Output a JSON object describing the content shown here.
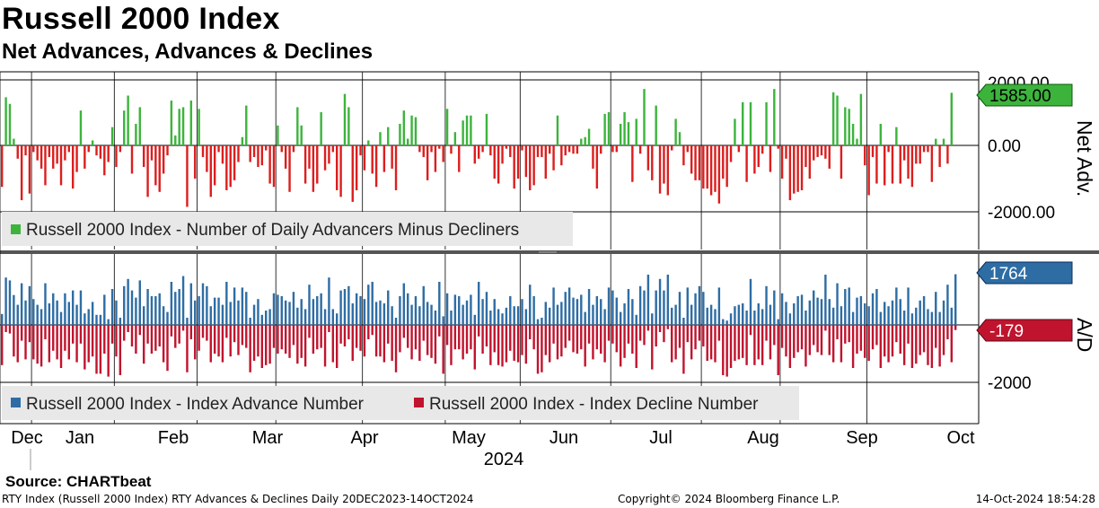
{
  "header": {
    "title": "Russell 2000 Index",
    "subtitle": "Net Advances, Advances & Declines"
  },
  "footer": {
    "source": "Source: CHARTbeat",
    "left": "RTY Index (Russell 2000 Index) RTY Advances & Declines  Daily 20DEC2023-14OCT2024",
    "copyright": "Copyright© 2024 Bloomberg Finance L.P.",
    "timestamp": "14-Oct-2024 18:54:28"
  },
  "colors": {
    "net_positive": "#3cb43c",
    "net_negative": "#dc1e1e",
    "advances": "#2e6da4",
    "declines": "#c0142e",
    "net_last_tag": "#3cb43c",
    "adv_last_tag": "#2e6da4",
    "dec_last_tag": "#c0142e"
  },
  "chart_data": [
    {
      "type": "bar",
      "panel": "top",
      "ylabel": "Net Adv.",
      "ylim": [
        -3000,
        2200
      ],
      "yticks": [
        2000,
        0,
        -2000
      ],
      "ytick_labels": [
        "2000.00",
        "0.00",
        "-2000.00"
      ],
      "legend": [
        "Russell 2000 Index - Number of Daily Advancers Minus Decliners"
      ],
      "last_value_label": "1585.00",
      "series": [
        {
          "name": "Russell 2000 Index - Number of Daily Advancers Minus Decliners",
          "values": [
            -1250,
            1450,
            1250,
            200,
            -400,
            -1650,
            -300,
            -1450,
            -200,
            -450,
            -700,
            -1200,
            -350,
            -700,
            -550,
            -1200,
            -450,
            -200,
            -1300,
            -800,
            1050,
            -700,
            -200,
            150,
            -300,
            -400,
            -900,
            -500,
            550,
            -650,
            -200,
            1050,
            1500,
            -850,
            650,
            1150,
            -650,
            -1550,
            -450,
            -1200,
            -1400,
            -850,
            -300,
            1350,
            300,
            1100,
            1150,
            -1850,
            1350,
            -1000,
            1100,
            -350,
            -800,
            -1550,
            -1200,
            -200,
            -550,
            -1350,
            -1250,
            -1050,
            -500,
            250,
            1200,
            -500,
            -350,
            -650,
            -600,
            -150,
            -1150,
            -1250,
            600,
            -200,
            -700,
            -1400,
            -200,
            1150,
            600,
            -1150,
            -700,
            -1400,
            -1150,
            1000,
            -750,
            -550,
            -200,
            -1350,
            -1550,
            1550,
            1150,
            -1700,
            -1350,
            -300,
            -750,
            150,
            -850,
            -1250,
            400,
            -800,
            550,
            -700,
            -1350,
            650,
            1050,
            200,
            900,
            850,
            -200,
            -350,
            -1050,
            -200,
            -800,
            -100,
            -500,
            1100,
            -250,
            400,
            -800,
            750,
            900,
            900,
            -550,
            -400,
            -200,
            950,
            -300,
            -1000,
            -1150,
            -550,
            -100,
            -350,
            -1300,
            -1000,
            -150,
            -950,
            -1350,
            -1200,
            -350,
            -350,
            -1000,
            -250,
            -750,
            900,
            -600,
            -300,
            -200,
            -250,
            -250,
            200,
            250,
            500,
            -700,
            -1300,
            -250,
            950,
            1000,
            -200,
            -200,
            650,
            1000,
            700,
            -1100,
            800,
            -250,
            1700,
            -750,
            -1050,
            1200,
            -1450,
            -1150,
            -1500,
            -150,
            800,
            400,
            -600,
            -200,
            -850,
            -1050,
            -1050,
            -1300,
            -1300,
            -1500,
            -1400,
            -1750,
            -1000,
            -1250,
            -500,
            800,
            -200,
            1300,
            -1100,
            1300,
            -850,
            -650,
            -250,
            1300,
            -800,
            1700,
            -100,
            -1000,
            -400,
            -1650,
            -1450,
            -1400,
            -1350,
            -650,
            -1000,
            -450,
            -350,
            -300,
            -400,
            -700,
            1600,
            1500,
            -1000,
            1150,
            1100,
            650,
            200,
            1550,
            -600,
            -1500,
            -350,
            -1150,
            650,
            -1200,
            -200,
            -1150,
            550,
            -1150,
            -450,
            -1000,
            -1250,
            -550,
            -550,
            -200,
            -200,
            -1100,
            200,
            -650,
            200,
            -550,
            1585
          ]
        }
      ]
    },
    {
      "type": "bar",
      "panel": "bottom",
      "ylabel": "A/D",
      "ylim": [
        -3000,
        2200
      ],
      "yticks": [
        -2000
      ],
      "ytick_labels": [
        "-2000"
      ],
      "legend": [
        "Russell 2000 Index - Index Advance Number",
        "Russell 2000 Index - Index Decline Number"
      ],
      "last_advance_label": "1764",
      "last_decline_label": "-179",
      "xtick_labels": [
        "Dec",
        "Jan",
        "Feb",
        "Mar",
        "Apr",
        "May",
        "Jun",
        "Jul",
        "Aug",
        "Sep",
        "Oct"
      ],
      "year_label": "2024",
      "series": [
        {
          "name": "Russell 2000 Index - Index Advance Number",
          "values": [
            380,
            1650,
            1550,
            1040,
            700,
            1450,
            850,
            1350,
            900,
            700,
            550,
            1450,
            750,
            1100,
            850,
            450,
            1100,
            800,
            1200,
            700,
            1200,
            400,
            550,
            800,
            350,
            350,
            1050,
            200,
            1250,
            850,
            250,
            1350,
            1600,
            1200,
            950,
            1550,
            650,
            1250,
            1000,
            1000,
            1100,
            650,
            450,
            1500,
            1150,
            1250,
            1700,
            250,
            1450,
            850,
            1000,
            1450,
            1350,
            650,
            950,
            950,
            700,
            1500,
            800,
            1300,
            850,
            1300,
            1150,
            250,
            700,
            900,
            350,
            500,
            550,
            1100,
            1050,
            1000,
            850,
            800,
            1150,
            600,
            900,
            550,
            1400,
            900,
            1000,
            1100,
            550,
            1650,
            550,
            400,
            1200,
            1250,
            1350,
            750,
            1100,
            1000,
            900,
            1400,
            1500,
            800,
            850,
            750,
            1200,
            650,
            250,
            1000,
            1450,
            1100,
            700,
            1000,
            650,
            1350,
            800,
            700,
            500,
            1500,
            300,
            1100,
            500,
            1050,
            1000,
            700,
            850,
            1050,
            350,
            1500,
            900,
            1150,
            500,
            900,
            550,
            400,
            600,
            1000,
            650,
            650,
            900,
            550,
            1400,
            1000,
            200,
            250,
            800,
            600,
            1300,
            700,
            800,
            1150,
            1300,
            950,
            900,
            1050,
            450,
            1250,
            700,
            1000,
            900,
            550,
            1300,
            1200,
            950,
            450,
            750,
            1250,
            900,
            350,
            1350,
            1200,
            1750,
            400,
            1200,
            1600,
            1200,
            1750,
            600,
            700,
            1150,
            250,
            1300,
            700,
            1100,
            1350,
            1150,
            600,
            700,
            550,
            1300,
            200,
            150,
            400,
            650,
            700,
            750,
            500,
            1600,
            500,
            750,
            550,
            1350,
            700,
            1200,
            200,
            1100,
            800,
            400,
            750,
            1000,
            1050,
            500,
            850,
            1200,
            950,
            900,
            1750,
            900,
            600,
            1450,
            650,
            1250,
            1300,
            450,
            950,
            1000,
            750,
            650,
            1100,
            1250,
            450,
            800,
            650,
            850,
            1300,
            900,
            500,
            1300,
            400,
            600,
            850,
            1000,
            550,
            450,
            1150,
            450,
            850,
            1400,
            600,
            1764
          ]
        },
        {
          "name": "Russell 2000 Index - Index Decline Number",
          "values": [
            -1400,
            -250,
            -300,
            -1100,
            -1300,
            -550,
            -1200,
            -600,
            -1200,
            -1350,
            -1450,
            -500,
            -1300,
            -900,
            -1200,
            -1500,
            -900,
            -1200,
            -650,
            -1300,
            -650,
            -1550,
            -1300,
            -1100,
            -1700,
            -1700,
            -1000,
            -1800,
            -650,
            -1100,
            -1750,
            -550,
            -250,
            -750,
            -1000,
            -350,
            -1350,
            -650,
            -1000,
            -900,
            -750,
            -1300,
            -1600,
            -400,
            -800,
            -650,
            -200,
            -1650,
            -500,
            -1200,
            -900,
            -450,
            -550,
            -1300,
            -1000,
            -1100,
            -1300,
            -450,
            -1100,
            -600,
            -1050,
            -700,
            -800,
            -1650,
            -1250,
            -1100,
            -1500,
            -1400,
            -1350,
            -800,
            -1000,
            -850,
            -1000,
            -1150,
            -700,
            -1350,
            -1150,
            -1450,
            -450,
            -1000,
            -850,
            -800,
            -1450,
            -250,
            -1300,
            -1500,
            -650,
            -750,
            -500,
            -1250,
            -800,
            -900,
            -1100,
            -500,
            -350,
            -1100,
            -1100,
            -1300,
            -650,
            -1250,
            -1650,
            -950,
            -450,
            -800,
            -1200,
            -850,
            -1250,
            -550,
            -1050,
            -1150,
            -1350,
            -400,
            -1700,
            -700,
            -1400,
            -850,
            -850,
            -1200,
            -1000,
            -850,
            -1550,
            -400,
            -1000,
            -750,
            -1400,
            -950,
            -1400,
            -1450,
            -1300,
            -900,
            -1250,
            -1300,
            -1050,
            -1350,
            -500,
            -850,
            -1700,
            -1650,
            -1050,
            -1300,
            -650,
            -1200,
            -1100,
            -800,
            -550,
            -950,
            -1000,
            -850,
            -1450,
            -650,
            -1200,
            -850,
            -1000,
            -1300,
            -550,
            -650,
            -950,
            -1450,
            -1150,
            -650,
            -1000,
            -1500,
            -550,
            -700,
            -200,
            -1550,
            -750,
            -250,
            -600,
            -150,
            -1300,
            -1200,
            -800,
            -1700,
            -600,
            -1200,
            -850,
            -550,
            -750,
            -1250,
            -1200,
            -1300,
            -550,
            -1750,
            -1800,
            -1500,
            -1250,
            -1200,
            -1150,
            -1400,
            -350,
            -1400,
            -1200,
            -1400,
            -550,
            -1200,
            -700,
            -1750,
            -800,
            -1100,
            -1500,
            -1150,
            -950,
            -850,
            -1450,
            -1050,
            -700,
            -950,
            -1050,
            -200,
            -1050,
            -1300,
            -500,
            -1300,
            -650,
            -600,
            -1500,
            -1000,
            -900,
            -1150,
            -1250,
            -850,
            -700,
            -1500,
            -1100,
            -1300,
            -1100,
            -600,
            -1000,
            -1400,
            -650,
            -1500,
            -1350,
            -1050,
            -950,
            -1400,
            -1500,
            -800,
            -1450,
            -1050,
            -500,
            -1300,
            -179
          ]
        }
      ]
    }
  ]
}
